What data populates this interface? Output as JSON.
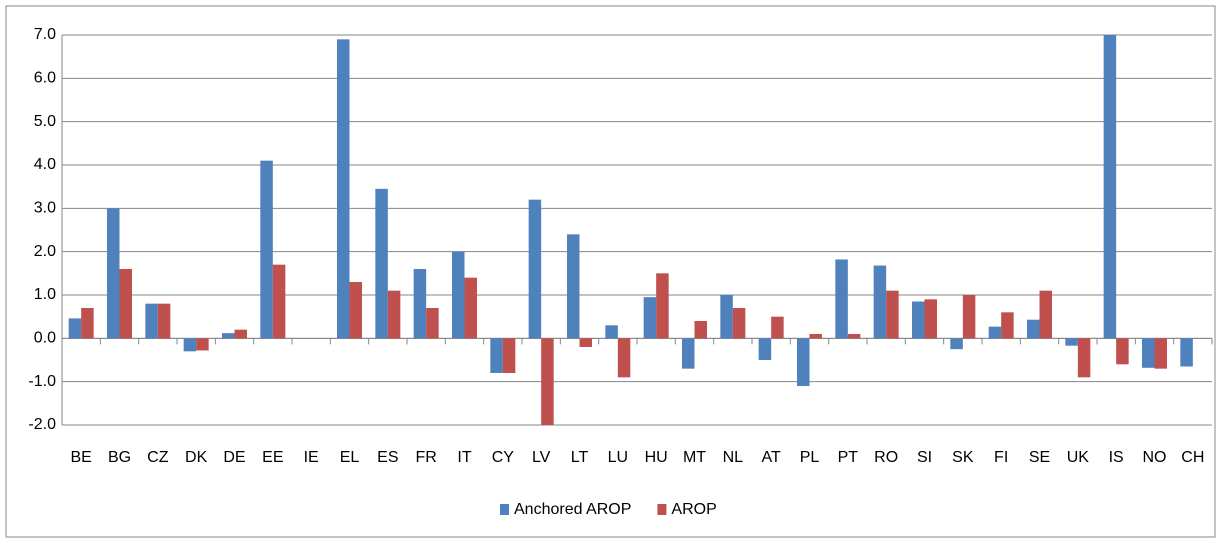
{
  "chart_data": {
    "type": "bar",
    "categories": [
      "BE",
      "BG",
      "CZ",
      "DK",
      "DE",
      "EE",
      "IE",
      "EL",
      "ES",
      "FR",
      "IT",
      "CY",
      "LV",
      "LT",
      "LU",
      "HU",
      "MT",
      "NL",
      "AT",
      "PL",
      "PT",
      "RO",
      "SI",
      "SK",
      "FI",
      "SE",
      "UK",
      "IS",
      "NO",
      "CH"
    ],
    "series": [
      {
        "name": "Anchored AROP",
        "color": "#4f81bd",
        "values": [
          0.46,
          3.0,
          0.8,
          -0.3,
          0.12,
          4.1,
          null,
          6.9,
          3.45,
          1.6,
          2.0,
          -0.8,
          3.2,
          2.4,
          0.3,
          0.95,
          -0.7,
          1.0,
          -0.5,
          -1.1,
          1.82,
          1.68,
          0.85,
          -0.25,
          0.27,
          0.43,
          -0.17,
          7.0,
          -0.68,
          -0.65
        ]
      },
      {
        "name": "AROP",
        "color": "#c0504d",
        "values": [
          0.7,
          1.6,
          0.8,
          -0.28,
          0.2,
          1.7,
          null,
          1.3,
          1.1,
          0.7,
          1.4,
          -0.8,
          -2.0,
          -0.2,
          -0.9,
          1.5,
          0.4,
          0.7,
          0.5,
          0.1,
          0.1,
          1.1,
          0.9,
          1.0,
          0.6,
          1.1,
          -0.9,
          -0.6,
          -0.7,
          null
        ]
      }
    ],
    "ylim": [
      -2,
      7
    ],
    "yticks": [
      {
        "value": -2,
        "label": "-2.0"
      },
      {
        "value": -1,
        "label": "-1.0"
      },
      {
        "value": 0,
        "label": "0.0"
      },
      {
        "value": 1,
        "label": "1.0"
      },
      {
        "value": 2,
        "label": "2.0"
      },
      {
        "value": 3,
        "label": "3.0"
      },
      {
        "value": 4,
        "label": "4.0"
      },
      {
        "value": 5,
        "label": "5.0"
      },
      {
        "value": 6,
        "label": "6.0"
      },
      {
        "value": 7,
        "label": "7.0"
      }
    ],
    "grid": true,
    "legend": "bottom"
  }
}
